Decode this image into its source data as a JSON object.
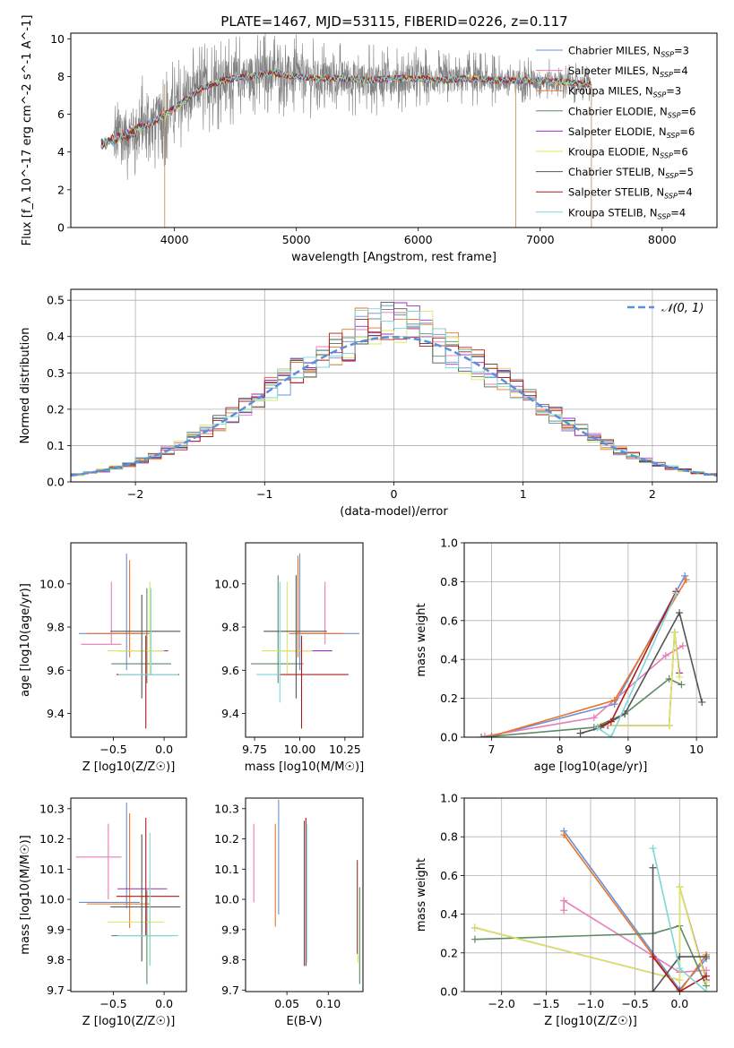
{
  "title": "PLATE=1467, MJD=53115, FIBERID=0226, z=0.117",
  "colors": {
    "Chabrier MILES": "#6a8fd8",
    "Salpeter MILES": "#e67db8",
    "Kroupa MILES": "#e8762a",
    "Chabrier ELODIE": "#5e8a64",
    "Salpeter ELODIE": "#9a2fc0",
    "Kroupa ELODIE": "#d9e85e",
    "Chabrier STELIB": "#555555",
    "Salpeter STELIB": "#b01a1a",
    "Kroupa STELIB": "#7fd6da"
  },
  "chart_data": [
    {
      "id": "spectrum",
      "type": "line",
      "title": "PLATE=1467, MJD=53115, FIBERID=0226, z=0.117",
      "xlabel": "wavelength [Angstrom, rest frame]",
      "ylabel": "Flux [f_λ 10^-17 erg cm^-2 s^-1 A^-1]",
      "xlim": [
        3150,
        8450
      ],
      "ylim": [
        0,
        10.3
      ],
      "xticks": [
        4000,
        5000,
        6000,
        7000,
        8000
      ],
      "yticks": [
        0,
        2,
        4,
        6,
        8,
        10
      ],
      "legend_position": "right",
      "legend": [
        {
          "name": "Chabrier MILES",
          "label": "Chabrier MILES, N",
          "sub": "SSP",
          "suffix": "=3"
        },
        {
          "name": "Salpeter MILES",
          "label": "Salpeter MILES, N",
          "sub": "SSP",
          "suffix": "=4"
        },
        {
          "name": "Kroupa MILES",
          "label": "Kroupa MILES, N",
          "sub": "SSP",
          "suffix": "=3"
        },
        {
          "name": "Chabrier ELODIE",
          "label": "Chabrier ELODIE, N",
          "sub": "SSP",
          "suffix": "=6"
        },
        {
          "name": "Salpeter ELODIE",
          "label": "Salpeter ELODIE, N",
          "sub": "SSP",
          "suffix": "=6"
        },
        {
          "name": "Kroupa ELODIE",
          "label": "Kroupa ELODIE, N",
          "sub": "SSP",
          "suffix": "=6"
        },
        {
          "name": "Chabrier STELIB",
          "label": "Chabrier STELIB, N",
          "sub": "SSP",
          "suffix": "=5"
        },
        {
          "name": "Salpeter STELIB",
          "label": "Salpeter STELIB, N",
          "sub": "SSP",
          "suffix": "=4"
        },
        {
          "name": "Kroupa STELIB",
          "label": "Kroupa STELIB, N",
          "sub": "SSP",
          "suffix": "=4"
        }
      ],
      "data_trend": {
        "x": [
          3400,
          3600,
          3800,
          4000,
          4200,
          4400,
          4600,
          4800,
          5000,
          5200,
          5400,
          5600,
          5800,
          6000,
          6200,
          6400,
          6600,
          6800,
          7000,
          7200,
          7400
        ],
        "y": [
          4.4,
          4.9,
          5.5,
          6.3,
          7.3,
          7.8,
          8.0,
          8.2,
          8.0,
          7.9,
          7.9,
          7.8,
          7.9,
          7.9,
          7.8,
          7.9,
          7.8,
          7.8,
          7.8,
          7.7,
          7.6
        ]
      },
      "data_noise_band": {
        "x": [
          3500,
          7420
        ],
        "amplitude": [
          3.0,
          1.0
        ]
      }
    },
    {
      "id": "residuals",
      "type": "histogram",
      "xlabel": "(data-model)/error",
      "ylabel": "Normed distribution",
      "xlim": [
        -2.5,
        2.5
      ],
      "ylim": [
        0,
        0.53
      ],
      "xticks": [
        -2,
        -1,
        0,
        1,
        2
      ],
      "yticks": [
        0.0,
        0.1,
        0.2,
        0.3,
        0.4,
        0.5
      ],
      "legend": "𝒩(0, 1)",
      "legend_position": "top-right",
      "gaussian": {
        "mean": 0,
        "sigma": 1,
        "color": "#5a8fd9"
      },
      "bin_width": 0.1
    },
    {
      "id": "age-vs-Z",
      "type": "errorbar",
      "xlabel": "Z [log10(Z/Z☉)]",
      "ylabel": "age [log10(age/yr)]",
      "xlim": [
        -0.92,
        0.22
      ],
      "ylim": [
        9.29,
        10.19
      ],
      "xticks": [
        -0.5,
        0.0
      ],
      "yticks": [
        9.4,
        9.6,
        9.8,
        10.0
      ],
      "points": [
        {
          "name": "Chabrier MILES",
          "x": -0.37,
          "y": 9.77,
          "xerr": [
            0.47,
            0.13
          ],
          "yerr": [
            0.17,
            0.37
          ]
        },
        {
          "name": "Salpeter MILES",
          "x": -0.52,
          "y": 9.72,
          "xerr": [
            0.3,
            0.1
          ],
          "yerr": [
            0.0,
            0.29
          ]
        },
        {
          "name": "Kroupa MILES",
          "x": -0.34,
          "y": 9.77,
          "xerr": [
            0.42,
            0.2
          ],
          "yerr": [
            0.11,
            0.34
          ]
        },
        {
          "name": "Chabrier ELODIE",
          "x": -0.17,
          "y": 9.63,
          "xerr": [
            0.35,
            0.24
          ],
          "yerr": [
            0.09,
            0.35
          ]
        },
        {
          "name": "Salpeter ELODIE",
          "x": -0.13,
          "y": 9.69,
          "xerr": [
            0.32,
            0.17
          ],
          "yerr": [
            0.0,
            0.0
          ]
        },
        {
          "name": "Kroupa ELODIE",
          "x": -0.14,
          "y": 9.69,
          "xerr": [
            0.42,
            0.14
          ],
          "yerr": [
            0.11,
            0.32
          ]
        },
        {
          "name": "Chabrier STELIB",
          "x": -0.22,
          "y": 9.78,
          "xerr": [
            0.31,
            0.38
          ],
          "yerr": [
            0.31,
            0.17
          ]
        },
        {
          "name": "Salpeter STELIB",
          "x": -0.18,
          "y": 9.58,
          "xerr": [
            0.29,
            0.33
          ],
          "yerr": [
            0.25,
            0.18
          ]
        },
        {
          "name": "Kroupa STELIB",
          "x": -0.13,
          "y": 9.58,
          "xerr": [
            0.32,
            0.27
          ],
          "yerr": [
            0.0,
            0.4
          ]
        }
      ]
    },
    {
      "id": "age-vs-mass",
      "type": "errorbar",
      "xlabel": "mass [log10(M/M☉)]",
      "ylabel": "",
      "xlim": [
        9.7,
        10.35
      ],
      "ylim": [
        9.29,
        10.19
      ],
      "xticks": [
        9.75,
        10.0,
        10.25
      ],
      "yticks": [
        9.4,
        9.6,
        9.8,
        10.0
      ],
      "points": [
        {
          "name": "Chabrier MILES",
          "x": 10.0,
          "y": 9.77,
          "xerr": [
            0.02,
            0.33
          ],
          "yerr": [
            0.17,
            0.37
          ]
        },
        {
          "name": "Salpeter MILES",
          "x": 10.14,
          "y": 9.72,
          "xerr": [
            0.0,
            0.0
          ],
          "yerr": [
            0.0,
            0.29
          ]
        },
        {
          "name": "Kroupa MILES",
          "x": 9.99,
          "y": 9.77,
          "xerr": [
            0.05,
            0.25
          ],
          "yerr": [
            0.11,
            0.36
          ]
        },
        {
          "name": "Chabrier ELODIE",
          "x": 9.88,
          "y": 9.63,
          "xerr": [
            0.15,
            0.14
          ],
          "yerr": [
            0.09,
            0.41
          ]
        },
        {
          "name": "Salpeter ELODIE",
          "x": 10.04,
          "y": 9.69,
          "xerr": [
            0.14,
            0.14
          ],
          "yerr": [
            0.0,
            0.0
          ]
        },
        {
          "name": "Kroupa ELODIE",
          "x": 9.93,
          "y": 9.69,
          "xerr": [
            0.14,
            0.14
          ],
          "yerr": [
            0.11,
            0.32
          ]
        },
        {
          "name": "Chabrier STELIB",
          "x": 9.98,
          "y": 9.78,
          "xerr": [
            0.18,
            0.17
          ],
          "yerr": [
            0.31,
            0.26
          ]
        },
        {
          "name": "Salpeter STELIB",
          "x": 10.01,
          "y": 9.58,
          "xerr": [
            0.13,
            0.26
          ],
          "yerr": [
            0.25,
            0.18
          ]
        },
        {
          "name": "Kroupa STELIB",
          "x": 9.89,
          "y": 9.58,
          "xerr": [
            0.13,
            0.0
          ],
          "yerr": [
            0.13,
            0.43
          ]
        }
      ]
    },
    {
      "id": "massweight-vs-age",
      "type": "line",
      "xlabel": "age [log10(age/yr)]",
      "ylabel": "mass weight",
      "xlim": [
        6.6,
        10.3
      ],
      "ylim": [
        0,
        1.0
      ],
      "xticks": [
        7,
        8,
        9,
        10
      ],
      "yticks": [
        0.0,
        0.2,
        0.4,
        0.6,
        0.8,
        1.0
      ],
      "series": [
        {
          "name": "Chabrier MILES",
          "x": [
            7.0,
            8.8,
            9.83
          ],
          "y": [
            0.005,
            0.17,
            0.83
          ]
        },
        {
          "name": "Salpeter MILES",
          "x": [
            6.9,
            8.5,
            9.55,
            9.8
          ],
          "y": [
            0.005,
            0.1,
            0.42,
            0.47
          ]
        },
        {
          "name": "Kroupa MILES",
          "x": [
            7.0,
            8.8,
            9.85
          ],
          "y": [
            0.005,
            0.19,
            0.81
          ]
        },
        {
          "name": "Chabrier ELODIE",
          "x": [
            6.85,
            8.5,
            8.95,
            9.6,
            9.78
          ],
          "y": [
            0.0,
            0.05,
            0.12,
            0.3,
            0.27
          ]
        },
        {
          "name": "Salpeter ELODIE",
          "x": [
            8.7,
            9.6,
            9.68,
            9.75
          ],
          "y": [
            0.06,
            0.06,
            0.54,
            0.33
          ]
        },
        {
          "name": "Kroupa ELODIE",
          "x": [
            8.6,
            9.6,
            9.68,
            9.75
          ],
          "y": [
            0.06,
            0.06,
            0.54,
            0.31
          ]
        },
        {
          "name": "Chabrier STELIB",
          "x": [
            8.3,
            8.6,
            8.95,
            9.75,
            10.08
          ],
          "y": [
            0.02,
            0.05,
            0.12,
            0.64,
            0.18
          ]
        },
        {
          "name": "Salpeter STELIB",
          "x": [
            8.55,
            8.75,
            9.7
          ],
          "y": [
            0.05,
            0.08,
            0.75
          ]
        },
        {
          "name": "Kroupa STELIB",
          "x": [
            8.55,
            8.75,
            9.7
          ],
          "y": [
            0.05,
            0.0,
            0.74
          ]
        }
      ]
    },
    {
      "id": "mass-vs-Z",
      "type": "errorbar",
      "xlabel": "Z [log10(Z/Z☉)]",
      "ylabel": "mass [log10(M/M☉)]",
      "xlim": [
        -0.92,
        0.22
      ],
      "ylim": [
        9.695,
        10.335
      ],
      "xticks": [
        -0.5,
        0.0
      ],
      "yticks": [
        9.7,
        9.8,
        9.9,
        10.0,
        10.1,
        10.2,
        10.3
      ],
      "points": [
        {
          "name": "Chabrier MILES",
          "x": -0.37,
          "y": 9.99,
          "xerr": [
            0.47,
            0.13
          ],
          "yerr": [
            0.02,
            0.33
          ]
        },
        {
          "name": "Salpeter MILES",
          "x": -0.55,
          "y": 10.14,
          "xerr": [
            0.32,
            0.13
          ],
          "yerr": [
            0.14,
            0.11
          ]
        },
        {
          "name": "Kroupa MILES",
          "x": -0.34,
          "y": 9.985,
          "xerr": [
            0.42,
            0.2
          ],
          "yerr": [
            0.08,
            0.3
          ]
        },
        {
          "name": "Chabrier ELODIE",
          "x": -0.17,
          "y": 9.88,
          "xerr": [
            0.35,
            0.24
          ],
          "yerr": [
            0.16,
            0.15
          ]
        },
        {
          "name": "Salpeter ELODIE",
          "x": -0.14,
          "y": 10.035,
          "xerr": [
            0.32,
            0.17
          ],
          "yerr": [
            0.0,
            0.0
          ]
        },
        {
          "name": "Kroupa ELODIE",
          "x": -0.14,
          "y": 9.925,
          "xerr": [
            0.42,
            0.14
          ],
          "yerr": [
            0.14,
            0.14
          ]
        },
        {
          "name": "Chabrier STELIB",
          "x": -0.22,
          "y": 9.975,
          "xerr": [
            0.31,
            0.38
          ],
          "yerr": [
            0.18,
            0.24
          ]
        },
        {
          "name": "Salpeter STELIB",
          "x": -0.18,
          "y": 10.01,
          "xerr": [
            0.29,
            0.33
          ],
          "yerr": [
            0.13,
            0.26
          ]
        },
        {
          "name": "Kroupa STELIB",
          "x": -0.14,
          "y": 9.88,
          "xerr": [
            0.32,
            0.28
          ],
          "yerr": [
            0.1,
            0.34
          ]
        }
      ]
    },
    {
      "id": "mass-vs-ebv",
      "type": "errorbar",
      "xlabel": "E(B-V)",
      "ylabel": "",
      "xlim": [
        0.0,
        0.142
      ],
      "ylim": [
        9.695,
        10.335
      ],
      "xticks": [
        0.05,
        0.1
      ],
      "yticks": [
        9.7,
        9.8,
        9.9,
        10.0,
        10.1,
        10.2,
        10.3
      ],
      "points": [
        {
          "name": "Chabrier MILES",
          "x": 0.04,
          "y": 10.14,
          "xerr": [
            0,
            0
          ],
          "yerr": [
            0.19,
            0.19
          ]
        },
        {
          "name": "Salpeter MILES",
          "x": 0.01,
          "y": 10.12,
          "xerr": [
            0,
            0
          ],
          "yerr": [
            0.13,
            0.13
          ]
        },
        {
          "name": "Kroupa MILES",
          "x": 0.036,
          "y": 10.08,
          "xerr": [
            0,
            0
          ],
          "yerr": [
            0.17,
            0.17
          ]
        },
        {
          "name": "Chabrier ELODIE",
          "x": 0.138,
          "y": 9.88,
          "xerr": [
            0,
            0
          ],
          "yerr": [
            0.16,
            0.16
          ]
        },
        {
          "name": "Salpeter ELODIE",
          "x": 0.135,
          "y": 10.0,
          "xerr": [
            0,
            0
          ],
          "yerr": [
            0.18,
            0.13
          ]
        },
        {
          "name": "Kroupa ELODIE",
          "x": 0.136,
          "y": 9.97,
          "xerr": [
            0,
            0
          ],
          "yerr": [
            0.18,
            0.16
          ]
        },
        {
          "name": "Chabrier STELIB",
          "x": 0.071,
          "y": 10.02,
          "xerr": [
            0,
            0
          ],
          "yerr": [
            0.24,
            0.24
          ]
        },
        {
          "name": "Salpeter STELIB",
          "x": 0.073,
          "y": 10.02,
          "xerr": [
            0,
            0
          ],
          "yerr": [
            0.24,
            0.25
          ]
        },
        {
          "name": "Kroupa STELIB",
          "x": 0.074,
          "y": 10.01,
          "xerr": [
            0,
            0
          ],
          "yerr": [
            0.22,
            0.24
          ]
        }
      ]
    },
    {
      "id": "massweight-vs-Z",
      "type": "line",
      "xlabel": "Z [log10(Z/Z☉)]",
      "ylabel": "mass weight",
      "xlim": [
        -2.42,
        0.42
      ],
      "ylim": [
        0,
        1.0
      ],
      "xticks": [
        -2.0,
        -1.5,
        -1.0,
        -0.5,
        0.0
      ],
      "yticks": [
        0.0,
        0.2,
        0.4,
        0.6,
        0.8,
        1.0
      ],
      "series": [
        {
          "name": "Chabrier MILES",
          "x": [
            -1.3,
            0.0,
            0.3
          ],
          "y": [
            0.83,
            0.01,
            0.17
          ]
        },
        {
          "name": "Salpeter MILES",
          "x": [
            -1.3,
            -1.3,
            0.0,
            0.3
          ],
          "y": [
            0.42,
            0.47,
            0.1,
            0.11
          ]
        },
        {
          "name": "Kroupa MILES",
          "x": [
            -1.3,
            0.0,
            0.3
          ],
          "y": [
            0.81,
            0.0,
            0.19
          ]
        },
        {
          "name": "Chabrier ELODIE",
          "x": [
            -2.3,
            -0.3,
            0.0,
            0.3
          ],
          "y": [
            0.27,
            0.3,
            0.34,
            0.03
          ]
        },
        {
          "name": "Salpeter ELODIE",
          "x": [
            -2.3,
            0.0,
            0.0,
            0.3
          ],
          "y": [
            0.33,
            0.06,
            0.54,
            0.06
          ]
        },
        {
          "name": "Kroupa ELODIE",
          "x": [
            -2.3,
            0.0,
            0.0,
            0.3
          ],
          "y": [
            0.33,
            0.06,
            0.54,
            0.05
          ]
        },
        {
          "name": "Chabrier STELIB",
          "x": [
            -0.3,
            -0.3,
            0.0,
            0.3
          ],
          "y": [
            0.64,
            0.0,
            0.18,
            0.18
          ]
        },
        {
          "name": "Salpeter STELIB",
          "x": [
            -0.3,
            0.0,
            0.3
          ],
          "y": [
            0.18,
            0.0,
            0.08
          ]
        },
        {
          "name": "Kroupa STELIB",
          "x": [
            -0.3,
            0.0,
            0.3
          ],
          "y": [
            0.74,
            0.12,
            0.0
          ]
        }
      ]
    }
  ]
}
